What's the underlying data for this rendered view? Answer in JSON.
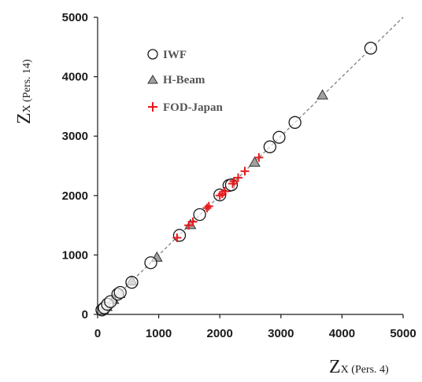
{
  "chart_data": {
    "type": "scatter",
    "xlabel": {
      "main": "Z",
      "sub": "X (Pers. 4)"
    },
    "ylabel": {
      "main": "Z",
      "sub": "X (Pers. 14)"
    },
    "xlim": [
      0,
      5000
    ],
    "ylim": [
      0,
      5000
    ],
    "xticks": [
      "0",
      "1000",
      "2000",
      "3000",
      "4000",
      "5000"
    ],
    "yticks": [
      "0",
      "1000",
      "2000",
      "3000",
      "4000",
      "5000"
    ],
    "grid": false,
    "legend_position": "top-left",
    "reference_line": {
      "style": "dashed",
      "from": [
        0,
        0
      ],
      "to": [
        5000,
        5000
      ],
      "color": "#808080"
    },
    "series": [
      {
        "name": "IWF",
        "marker": "circle-open",
        "color": "#1a1a1a",
        "points": [
          [
            70,
            75
          ],
          [
            110,
            110
          ],
          [
            160,
            170
          ],
          [
            210,
            215
          ],
          [
            330,
            340
          ],
          [
            370,
            370
          ],
          [
            560,
            540
          ],
          [
            870,
            870
          ],
          [
            1340,
            1330
          ],
          [
            1670,
            1680
          ],
          [
            2000,
            2010
          ],
          [
            2150,
            2170
          ],
          [
            2190,
            2180
          ],
          [
            2820,
            2820
          ],
          [
            2970,
            2980
          ],
          [
            3230,
            3230
          ],
          [
            4470,
            4480
          ]
        ]
      },
      {
        "name": "H-Beam",
        "marker": "triangle",
        "color": "#a0a0a0",
        "points": [
          [
            90,
            85
          ],
          [
            150,
            130
          ],
          [
            260,
            250
          ],
          [
            360,
            350
          ],
          [
            560,
            560
          ],
          [
            970,
            960
          ],
          [
            1520,
            1510
          ],
          [
            2570,
            2560
          ],
          [
            3680,
            3690
          ]
        ]
      },
      {
        "name": "FOD-Japan",
        "marker": "plus",
        "color": "#e8191b",
        "points": [
          [
            1300,
            1290
          ],
          [
            1490,
            1500
          ],
          [
            1560,
            1560
          ],
          [
            1790,
            1790
          ],
          [
            1820,
            1820
          ],
          [
            2000,
            2000
          ],
          [
            2040,
            2030
          ],
          [
            2080,
            2070
          ],
          [
            2210,
            2200
          ],
          [
            2230,
            2240
          ],
          [
            2300,
            2300
          ],
          [
            2410,
            2410
          ],
          [
            2640,
            2640
          ]
        ]
      }
    ]
  }
}
